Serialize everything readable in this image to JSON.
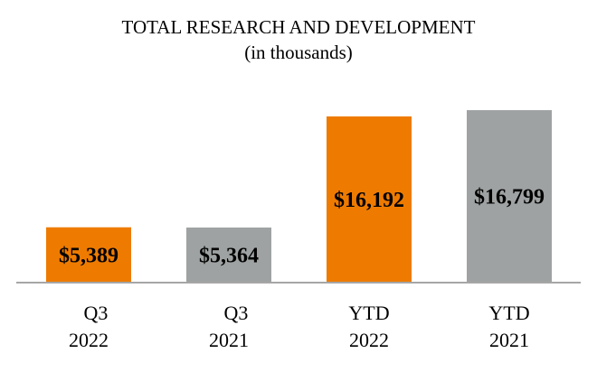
{
  "chart_data": {
    "type": "bar",
    "title": "TOTAL RESEARCH AND DEVELOPMENT",
    "subtitle": "(in thousands)",
    "categories": [
      [
        "Q3",
        "2022"
      ],
      [
        "Q3",
        "2021"
      ],
      [
        "YTD",
        "2022"
      ],
      [
        "YTD",
        "2021"
      ]
    ],
    "values": [
      5389,
      5364,
      16192,
      16799
    ],
    "data_labels": [
      "$5,389",
      "$5,364",
      "$16,192",
      "$16,799"
    ],
    "bar_colors": [
      "#EE7B00",
      "#9FA2A2",
      "#EE7B00",
      "#9FA2A2"
    ],
    "axis_color": "#A6A6A6",
    "ylim": [
      0,
      16799
    ],
    "grid": false,
    "legend": "none"
  }
}
